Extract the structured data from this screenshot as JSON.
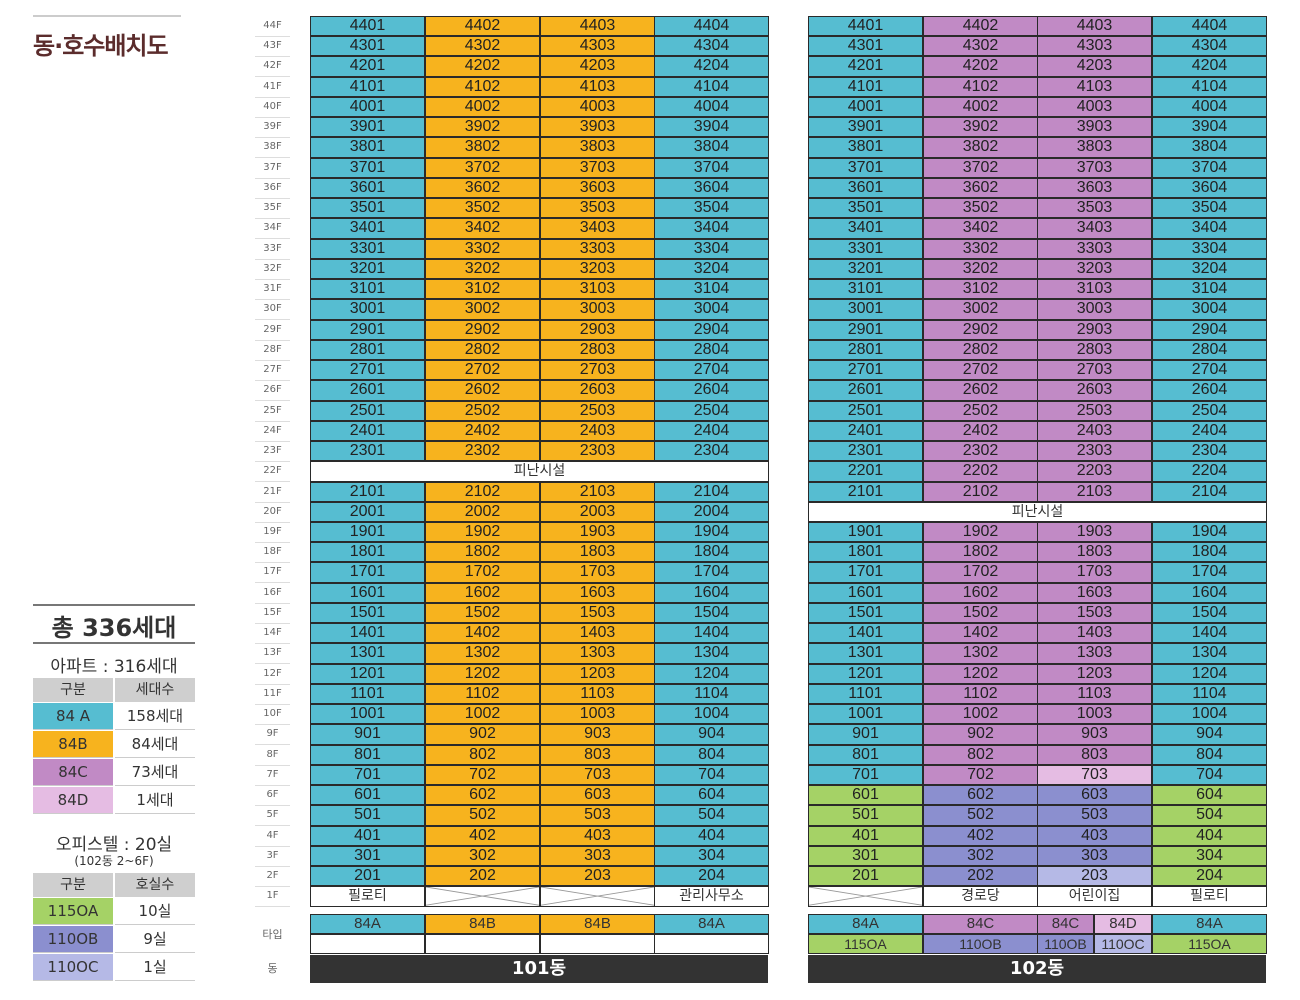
{
  "page_title": "동·호수배치도",
  "floors_label_prefix": "F",
  "type_row_label": "타입",
  "building_row_label": "동",
  "colors": {
    "84A": "#56bdd1",
    "84B": "#f7b31e",
    "84C": "#c18ac5",
    "84D": "#e5bce3",
    "115OA": "#a5d266",
    "110OB": "#8b8fcf",
    "110OC": "#b5b9e6"
  },
  "building_101": {
    "name": "101동",
    "refuge_label": "피난시설",
    "refuge_floor": 22,
    "column_types": [
      "84A",
      "84B",
      "84B",
      "84A"
    ],
    "ground_floor": [
      "필로티",
      "",
      "",
      "관리사무소"
    ],
    "type_row": [
      "84A",
      "84B",
      "84B",
      "84A"
    ]
  },
  "building_102": {
    "name": "102동",
    "refuge_label": "피난시설",
    "refuge_floor": 20,
    "column_types": [
      "84A",
      "84C",
      "84C",
      "84A"
    ],
    "office_floors_types": [
      "115OA",
      "110OB",
      "110OB",
      "115OA"
    ],
    "office_overrides": {
      "203": "110OC"
    },
    "unit_overrides": {
      "703": "84D"
    },
    "ground_floor": [
      "",
      "경로당",
      "어린이집",
      "필로티"
    ],
    "type_row_top": [
      "84A",
      "84C",
      "84C",
      "84D",
      "84A"
    ],
    "type_row_bottom": [
      "115OA",
      "110OB",
      "110OB",
      "110OC",
      "115OA"
    ]
  },
  "summary": {
    "total": "총 336세대",
    "apt_title": "아파트 : 316세대",
    "apt_head": [
      "구분",
      "세대수"
    ],
    "apt_rows": [
      {
        "key": "84 A",
        "val": "158세대",
        "color": "#56bdd1"
      },
      {
        "key": "84B",
        "val": "84세대",
        "color": "#f7b31e"
      },
      {
        "key": "84C",
        "val": "73세대",
        "color": "#c18ac5"
      },
      {
        "key": "84D",
        "val": "1세대",
        "color": "#e5bce3"
      }
    ],
    "off_title": "오피스텔 : 20실",
    "off_note": "(102동 2~6F)",
    "off_head": [
      "구분",
      "호실수"
    ],
    "off_rows": [
      {
        "key": "115OA",
        "val": "10실",
        "color": "#a5d266"
      },
      {
        "key": "110OB",
        "val": "9실",
        "color": "#8b8fcf"
      },
      {
        "key": "110OC",
        "val": "1실",
        "color": "#b5b9e6"
      }
    ]
  }
}
